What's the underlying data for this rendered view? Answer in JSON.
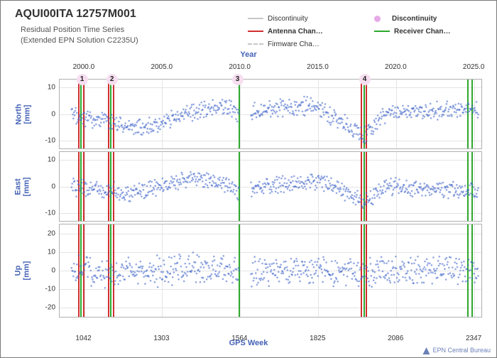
{
  "title": "AQUI00ITA 12757M001",
  "subtitle1": "Residual Position Time Series",
  "subtitle2": "(Extended EPN Solution C2235U)",
  "top_axis": {
    "label": "Year",
    "ticks": [
      2000.0,
      2005.0,
      2010.0,
      2015.0,
      2020.0,
      2025.0
    ],
    "tick_labels": [
      "2000.0",
      "2005.0",
      "2010.0",
      "2015.0",
      "2020.0",
      "2025.0"
    ]
  },
  "bottom_axis": {
    "label": "GPS Week",
    "ticks": [
      1042,
      1303,
      1564,
      1825,
      2086,
      2347
    ],
    "tick_labels": [
      "1042",
      "1303",
      "1564",
      "1825",
      "2086",
      "2347"
    ]
  },
  "x_domain": [
    960,
    2380
  ],
  "legend": {
    "items": [
      {
        "kind": "line",
        "style": "solid",
        "color": "#c7c7c7",
        "label": "Discontinuity"
      },
      {
        "kind": "circle",
        "color": "#e7a9e7",
        "label": "Discontinuity",
        "bold": true
      },
      {
        "kind": "line",
        "style": "solid",
        "color": "#d12f2f",
        "label": "Antenna Chan…",
        "bold": true
      },
      {
        "kind": "line",
        "style": "solid",
        "color": "#2ea82e",
        "label": "Receiver Chan…",
        "bold": true
      },
      {
        "kind": "line",
        "style": "dash",
        "color": "#c7c7c7",
        "label": "Firmware Cha…"
      }
    ]
  },
  "event_lines": {
    "red": [
      1025,
      1040,
      1125,
      1140,
      1970,
      1985
    ],
    "green": [
      1032,
      1132,
      1560,
      1978,
      2325,
      2340
    ]
  },
  "badges": [
    {
      "label": "1",
      "x": 1035
    },
    {
      "label": "2",
      "x": 1135
    },
    {
      "label": "3",
      "x": 1555
    },
    {
      "label": "4",
      "x": 1980
    }
  ],
  "panels": [
    {
      "name": "North",
      "ylabel": "North\n[mm]",
      "ylim": [
        -13,
        13
      ],
      "yticks": [
        -10,
        0,
        10
      ],
      "noise": 2.5,
      "baseline": [
        [
          1000,
          -1
        ],
        [
          1100,
          -2
        ],
        [
          1200,
          -5
        ],
        [
          1300,
          -4
        ],
        [
          1400,
          1
        ],
        [
          1520,
          3
        ],
        [
          1560,
          -1
        ],
        [
          1650,
          2
        ],
        [
          1800,
          3
        ],
        [
          1900,
          -3
        ],
        [
          1980,
          -8
        ],
        [
          2050,
          0
        ],
        [
          2200,
          1
        ],
        [
          2360,
          2
        ]
      ],
      "gap": [
        1560,
        1600
      ]
    },
    {
      "name": "East",
      "ylabel": "East\n[mm]",
      "ylim": [
        -13,
        13
      ],
      "yticks": [
        -10,
        0,
        10
      ],
      "noise": 2.5,
      "baseline": [
        [
          1000,
          0
        ],
        [
          1100,
          -1
        ],
        [
          1200,
          -3
        ],
        [
          1300,
          0
        ],
        [
          1400,
          3
        ],
        [
          1520,
          1
        ],
        [
          1560,
          -2
        ],
        [
          1650,
          0
        ],
        [
          1800,
          2
        ],
        [
          1900,
          -1
        ],
        [
          1980,
          -6
        ],
        [
          2050,
          0
        ],
        [
          2200,
          -1
        ],
        [
          2360,
          -2
        ]
      ],
      "gap": [
        1560,
        1600
      ]
    },
    {
      "name": "Up",
      "ylabel": "Up\n[mm]",
      "ylim": [
        -25,
        25
      ],
      "yticks": [
        -20,
        -10,
        0,
        10,
        20
      ],
      "noise": 6.0,
      "baseline": [
        [
          1000,
          0
        ],
        [
          1200,
          -1
        ],
        [
          1400,
          1
        ],
        [
          1560,
          0
        ],
        [
          1800,
          0
        ],
        [
          1980,
          -2
        ],
        [
          2100,
          1
        ],
        [
          2360,
          0
        ]
      ],
      "gap": [
        1560,
        1600
      ]
    }
  ],
  "style": {
    "scatter_color": "#3b61c8",
    "scatter_opacity": 0.55,
    "scatter_radius": 1.3,
    "grid_color": "#e4e4e4"
  },
  "credit": "EPN Central Bureau"
}
